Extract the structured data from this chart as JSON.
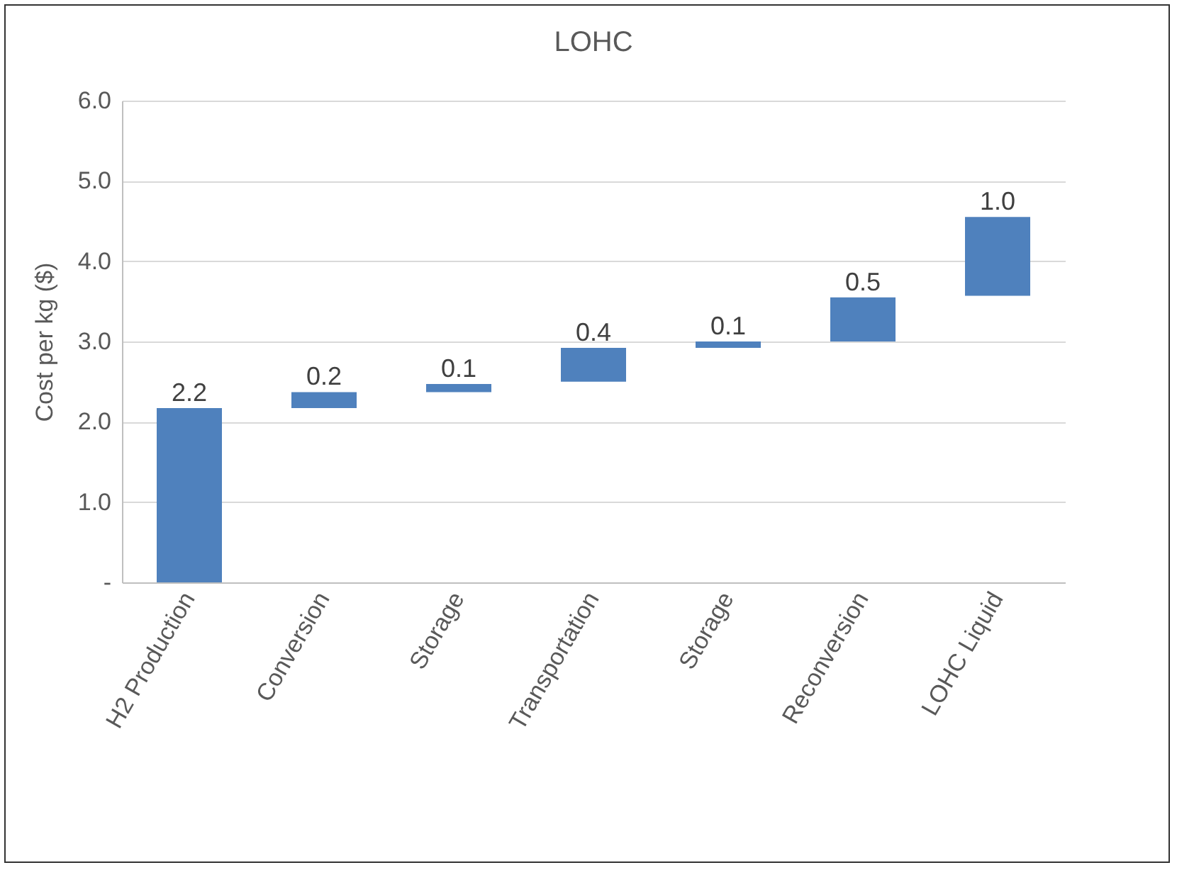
{
  "chart_data": {
    "type": "bar",
    "title": "LOHC",
    "ylabel": "Cost per kg ($)",
    "categories": [
      "H2 Production",
      "Conversion",
      "Storage",
      "Transportation",
      "Storage",
      "Reconversion",
      "LOHC Liquid"
    ],
    "values": [
      2.17,
      0.2,
      0.1,
      0.42,
      0.08,
      0.55,
      0.98
    ],
    "base": [
      0,
      2.17,
      2.37,
      2.5,
      2.92,
      3.0,
      3.57
    ],
    "value_labels": [
      "2.2",
      "0.2",
      "0.1",
      "0.4",
      "0.1",
      "0.5",
      "1.0"
    ],
    "color": "#4f81bd",
    "ylim": [
      0,
      6
    ],
    "yticks": [
      {
        "value": 0,
        "label": "-"
      },
      {
        "value": 1,
        "label": "1.0"
      },
      {
        "value": 2,
        "label": "2.0"
      },
      {
        "value": 3,
        "label": "3.0"
      },
      {
        "value": 4,
        "label": "4.0"
      },
      {
        "value": 5,
        "label": "5.0"
      },
      {
        "value": 6,
        "label": "6.0"
      }
    ],
    "grid": "y"
  }
}
